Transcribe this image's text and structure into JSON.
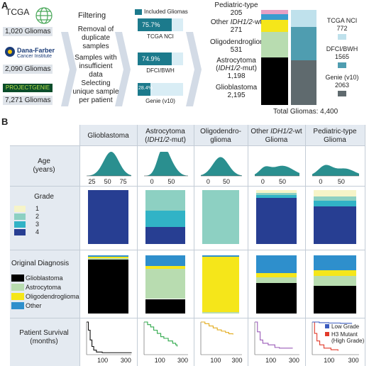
{
  "panel_a": {
    "letter": "A",
    "sources": [
      {
        "name": "TCGA",
        "count": "1,020 Gliomas"
      },
      {
        "name": "Dana-Farber",
        "subname": "Cancer Institute",
        "count": "2,090 Gliomas"
      },
      {
        "name": "PROJECTGENIE",
        "count": "7,271 Gliomas"
      }
    ],
    "filtering": {
      "title": "Filtering",
      "steps": [
        "Removal of duplicate samples",
        "Samples with insufficient data",
        "Selecting unique sample per patient"
      ]
    },
    "included_legend": "Included Gliomas",
    "bars": [
      {
        "pct": 75.7,
        "label": "75.7%",
        "name": "TCGA NCI"
      },
      {
        "pct": 74.9,
        "label": "74.9%",
        "name": "DFCI/BWH"
      },
      {
        "pct": 28.4,
        "label": "28.4%",
        "name": "Genie (v10)"
      }
    ],
    "categories": [
      {
        "name": "Pediatric-type",
        "count": "205",
        "value": 205,
        "color": "#e7a0c4"
      },
      {
        "name": "Other IDH1/2-wt",
        "count": "271",
        "value": 271,
        "color": "#3a9ccf"
      },
      {
        "name": "Oligodendroglioma",
        "count": "531",
        "value": 531,
        "color": "#f5e61a"
      },
      {
        "name": "Astrocytoma (IDH1/2-mut)",
        "count": "1,198",
        "value": 1198,
        "color": "#b8dcb0"
      },
      {
        "name": "Glioblastoma",
        "count": "2,195",
        "value": 2195,
        "color": "#000000"
      }
    ],
    "cohorts": [
      {
        "name": "TCGA NCI",
        "count": "772",
        "value": 772,
        "color": "#bfe1ec"
      },
      {
        "name": "DFCI/BWH",
        "count": "1565",
        "value": 1565,
        "color": "#4f9db0"
      },
      {
        "name": "Genie (v10)",
        "count": "2063",
        "value": 2063,
        "color": "#5f6a6e"
      }
    ],
    "total": "Total Gliomas: 4,400"
  },
  "panel_b": {
    "letter": "B",
    "columns": [
      {
        "l1": "Glioblastoma",
        "l2": ""
      },
      {
        "l1": "Astrocytoma",
        "l2": "(IDH1/2-mut)"
      },
      {
        "l1": "Oligodendro-",
        "l2": "glioma"
      },
      {
        "l1": "Other IDH1/2-wt",
        "l2": "Glioma"
      },
      {
        "l1": "Pediatric-type",
        "l2": "Glioma"
      }
    ],
    "age": {
      "title": "Age",
      "units": "(years)",
      "ticks_col1": [
        "25",
        "50",
        "75"
      ],
      "ticks_other": [
        "0",
        "50"
      ],
      "color": "#2a8f8f"
    },
    "grade": {
      "title": "Grade",
      "legend": [
        {
          "label": "1",
          "color": "#f6f4c8"
        },
        {
          "label": "2",
          "color": "#8dd0c2"
        },
        {
          "label": "3",
          "color": "#31b3c6"
        },
        {
          "label": "4",
          "color": "#273e92"
        }
      ],
      "stacks": [
        [
          0,
          0,
          0,
          100
        ],
        [
          0,
          38,
          30,
          32
        ],
        [
          0,
          100,
          0,
          0
        ],
        [
          5,
          4,
          6,
          85
        ],
        [
          12,
          8,
          10,
          70
        ]
      ]
    },
    "diagnosis": {
      "title": "Original Diagnosis",
      "legend": [
        {
          "label": "Glioblastoma",
          "color": "#000000"
        },
        {
          "label": "Astrocytoma",
          "color": "#b8dcb0"
        },
        {
          "label": "Oligodendroglioma",
          "color": "#f5e61a"
        },
        {
          "label": "Other",
          "color": "#2e8fcc"
        }
      ],
      "stacks": [
        [
          93,
          2,
          3,
          2
        ],
        [
          25,
          52,
          5,
          18
        ],
        [
          0,
          2,
          95,
          3
        ],
        [
          52,
          10,
          8,
          30
        ],
        [
          48,
          17,
          10,
          25
        ]
      ]
    },
    "survival": {
      "title": "Patient Survival",
      "units": "(months)",
      "ticks": [
        "100",
        "300"
      ],
      "colors": [
        "#111111",
        "#2ea84a",
        "#e2ab1c",
        "#9a5bb8",
        "#e23a2a"
      ],
      "legend": [
        {
          "label": "Low Grade",
          "color": "#3a5bbf"
        },
        {
          "label": "H3 Mutant",
          "sub": "(High Grade)",
          "color": "#e23a2a"
        }
      ]
    }
  }
}
